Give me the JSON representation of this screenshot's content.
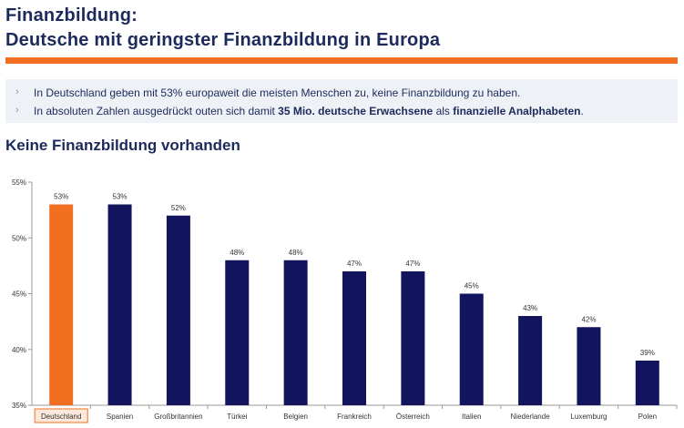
{
  "header": {
    "title_line1": "Finanzbildung:",
    "title_line2": "Deutsche mit geringster Finanzbildung in Europa"
  },
  "bullets": [
    {
      "marker": "›",
      "text": "In Deutschland geben mit 53% europaweit die meisten Menschen zu, keine Finanzbildung zu haben."
    },
    {
      "marker": "›",
      "parts": [
        "In absoluten Zahlen ausgedrückt outen sich damit ",
        "35 Mio. deutsche Erwachsene",
        " als ",
        "finanzielle Analphabeten",
        "."
      ]
    }
  ],
  "section_title": "Keine Finanzbildung vorhanden",
  "colors": {
    "title": "#1c2a5c",
    "accent": "#f26f22",
    "bar": "#12155e",
    "bullet_background": "#eef1f6"
  },
  "chart_data": {
    "type": "bar",
    "categories": [
      "Deutschland",
      "Spanien",
      "Großbritannien",
      "Türkei",
      "Belgien",
      "Frankreich",
      "Österreich",
      "Italien",
      "Niederlande",
      "Luxemburg",
      "Polen"
    ],
    "values": [
      53,
      53,
      52,
      48,
      48,
      47,
      47,
      45,
      43,
      42,
      39
    ],
    "value_labels": [
      "53%",
      "53%",
      "52%",
      "48%",
      "48%",
      "47%",
      "47%",
      "45%",
      "43%",
      "42%",
      "39%"
    ],
    "highlight_index": 0,
    "ylim": [
      35,
      55
    ],
    "yticks": [
      35,
      40,
      45,
      50,
      55
    ],
    "ytick_labels": [
      "35%",
      "40%",
      "45%",
      "50%",
      "55%"
    ],
    "grid": false,
    "legend": "none"
  }
}
